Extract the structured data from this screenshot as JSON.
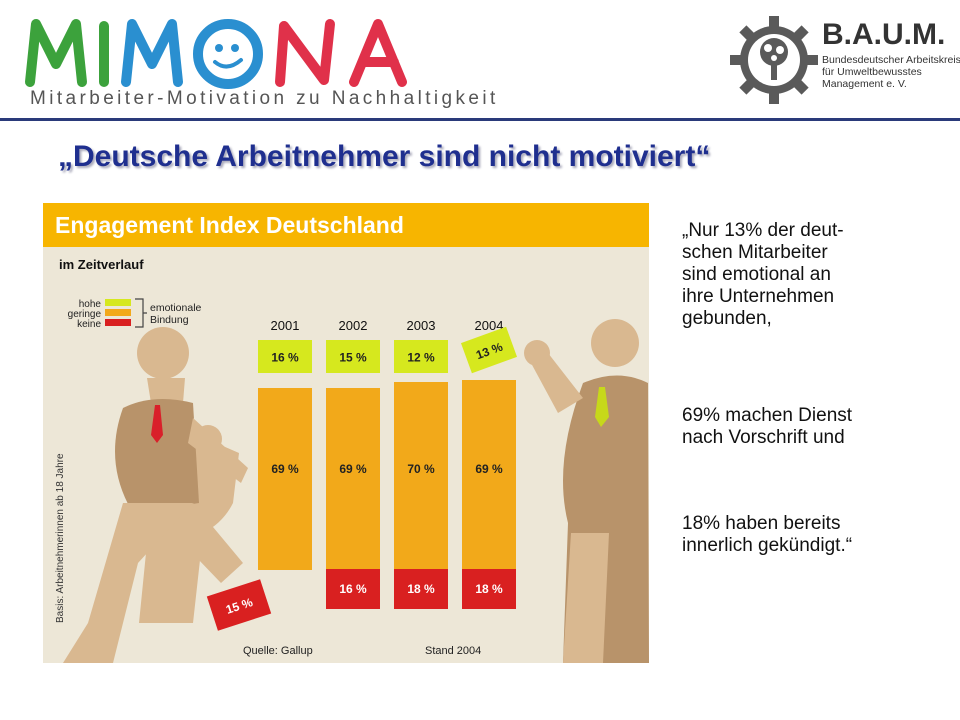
{
  "header": {
    "logo_text": "MIMONA",
    "tagline": "Mitarbeiter-Motivation zu Nachhaltigkeit",
    "baum_name": "B.A.U.M.",
    "baum_subtitle": "Bundesdeutscher Arbeitskreis für Umweltbewusstes Management e. V."
  },
  "slide_title": "„Deutsche Arbeitnehmer sind nicht motiviert“",
  "quote": {
    "line1": "„Nur 13% der deut-\nschen Mitarbeiter\nsind emotional an\nihre Unternehmen\ngebunden,",
    "line2": "69% machen Dienst\nnach Vorschrift und",
    "line3": "18% haben bereits\ninnerlich gekündigt.“"
  },
  "colors": {
    "hohe": "#d6e81e",
    "geringe": "#f2a91a",
    "keine": "#d92020",
    "header_bar": "#f7b500",
    "title": "#1f2f8f"
  },
  "chart_data": {
    "type": "bar",
    "title": "Engagement Index Deutschland",
    "subtitle": "im Zeitverlauf",
    "categories": [
      "2001",
      "2002",
      "2003",
      "2004"
    ],
    "series": [
      {
        "name": "hohe",
        "values": [
          16,
          15,
          12,
          13
        ],
        "labels": [
          "16 %",
          "15 %",
          "12 %",
          "13 %"
        ]
      },
      {
        "name": "geringe",
        "values": [
          69,
          69,
          70,
          69
        ],
        "labels": [
          "69 %",
          "69 %",
          "70 %",
          "69 %"
        ]
      },
      {
        "name": "keine",
        "values": [
          15,
          16,
          18,
          18
        ],
        "labels": [
          "15 %",
          "16 %",
          "18 %",
          "18 %"
        ]
      }
    ],
    "legend_group": "emotionale Bindung",
    "legend_group_lines": [
      "emotionale",
      "Bindung"
    ],
    "ylabel": "Basis: Arbeitnehmerinnen ab 18 Jahre",
    "source": "Quelle: Gallup",
    "stand": "Stand 2004"
  }
}
